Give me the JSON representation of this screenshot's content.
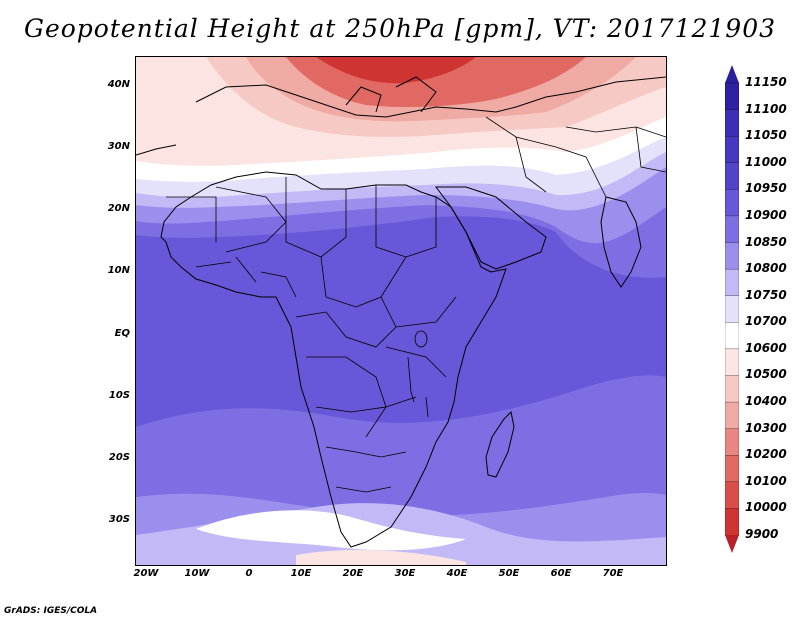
{
  "title": "Geopotential Height at 250hPa [gpm], VT: 2017121903",
  "credit": "GrADS: IGES/COLA",
  "lat_labels": [
    "40N",
    "30N",
    "20N",
    "10N",
    "EQ",
    "10S",
    "20S",
    "30S"
  ],
  "lon_labels": [
    "20W",
    "10W",
    "0",
    "10E",
    "20E",
    "30E",
    "40E",
    "50E",
    "60E",
    "70E"
  ],
  "colorbar": {
    "labels": [
      "11150",
      "11100",
      "11050",
      "11000",
      "10950",
      "10900",
      "10850",
      "10800",
      "10750",
      "10700",
      "10600",
      "10500",
      "10400",
      "10300",
      "10200",
      "10100",
      "10000",
      "9900"
    ],
    "colors": [
      "#2f21a4",
      "#3a2fb5",
      "#4539c0",
      "#5244c9",
      "#6658d8",
      "#7d6fe3",
      "#9b8fee",
      "#c2b9f6",
      "#e4e1fb",
      "#ffffff",
      "#fbe4e1",
      "#f7c9c4",
      "#f0aaa4",
      "#e88781",
      "#e06a63",
      "#d94e48",
      "#cd3432"
    ],
    "tip_top_color": "#2a1f9e",
    "tip_bottom_color": "#b8202a"
  },
  "colors": {
    "deep_blue": "#6658d8",
    "mid_blue": "#7d6fe3",
    "light_blue": "#9b8fee",
    "pale_blue": "#c2b9f6",
    "faint_blue": "#e4e1fb",
    "white": "#ffffff",
    "pale_red": "#fbe4e1",
    "light_red": "#f7c9c4",
    "mid_red": "#f0aaa4",
    "red": "#e06a63",
    "dark_red": "#cd3432",
    "coast": "#000000"
  }
}
